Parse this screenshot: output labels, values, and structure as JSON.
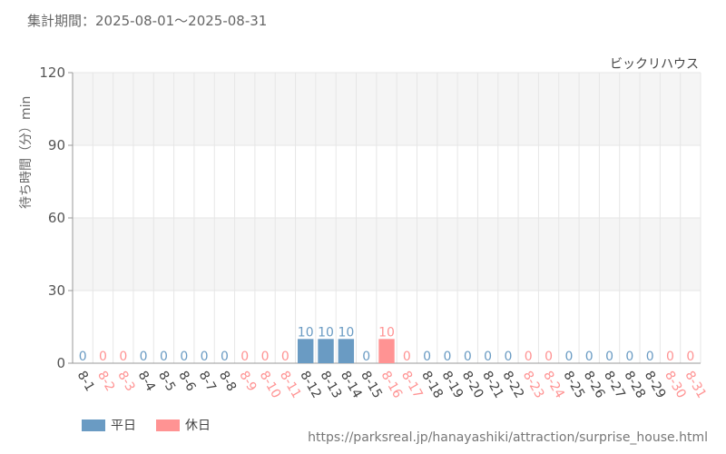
{
  "header": {
    "period": "集計期間：2025-08-01～2025-08-31",
    "attraction": "ビックリハウス"
  },
  "source": "https://parksreal.jp/hanayashiki/attraction/surprise_house.html",
  "colors": {
    "weekday": "#6a9bc3",
    "holiday": "#ff9393",
    "grid": "#e6e6e6",
    "band": "#f5f5f5"
  },
  "chart_data": {
    "type": "bar",
    "ylabel": "待ち時間（分）min",
    "ylim": [
      0,
      120
    ],
    "yticks": [
      0,
      30,
      60,
      90,
      120
    ],
    "categories": [
      "8-1",
      "8-2",
      "8-3",
      "8-4",
      "8-5",
      "8-6",
      "8-7",
      "8-8",
      "8-9",
      "8-10",
      "8-11",
      "8-12",
      "8-13",
      "8-14",
      "8-15",
      "8-16",
      "8-17",
      "8-18",
      "8-19",
      "8-20",
      "8-21",
      "8-22",
      "8-23",
      "8-24",
      "8-25",
      "8-26",
      "8-27",
      "8-28",
      "8-29",
      "8-30",
      "8-31"
    ],
    "values": [
      0,
      0,
      0,
      0,
      0,
      0,
      0,
      0,
      0,
      0,
      0,
      10,
      10,
      10,
      0,
      10,
      0,
      0,
      0,
      0,
      0,
      0,
      0,
      0,
      0,
      0,
      0,
      0,
      0,
      0,
      0
    ],
    "day_type": [
      "平日",
      "休日",
      "休日",
      "平日",
      "平日",
      "平日",
      "平日",
      "平日",
      "休日",
      "休日",
      "休日",
      "平日",
      "平日",
      "平日",
      "平日",
      "休日",
      "休日",
      "平日",
      "平日",
      "平日",
      "平日",
      "平日",
      "休日",
      "休日",
      "平日",
      "平日",
      "平日",
      "平日",
      "平日",
      "休日",
      "休日"
    ],
    "legend": [
      {
        "name": "平日",
        "color": "#6a9bc3"
      },
      {
        "name": "休日",
        "color": "#ff9393"
      }
    ],
    "legend_position": "bottom-left",
    "grid": true
  }
}
